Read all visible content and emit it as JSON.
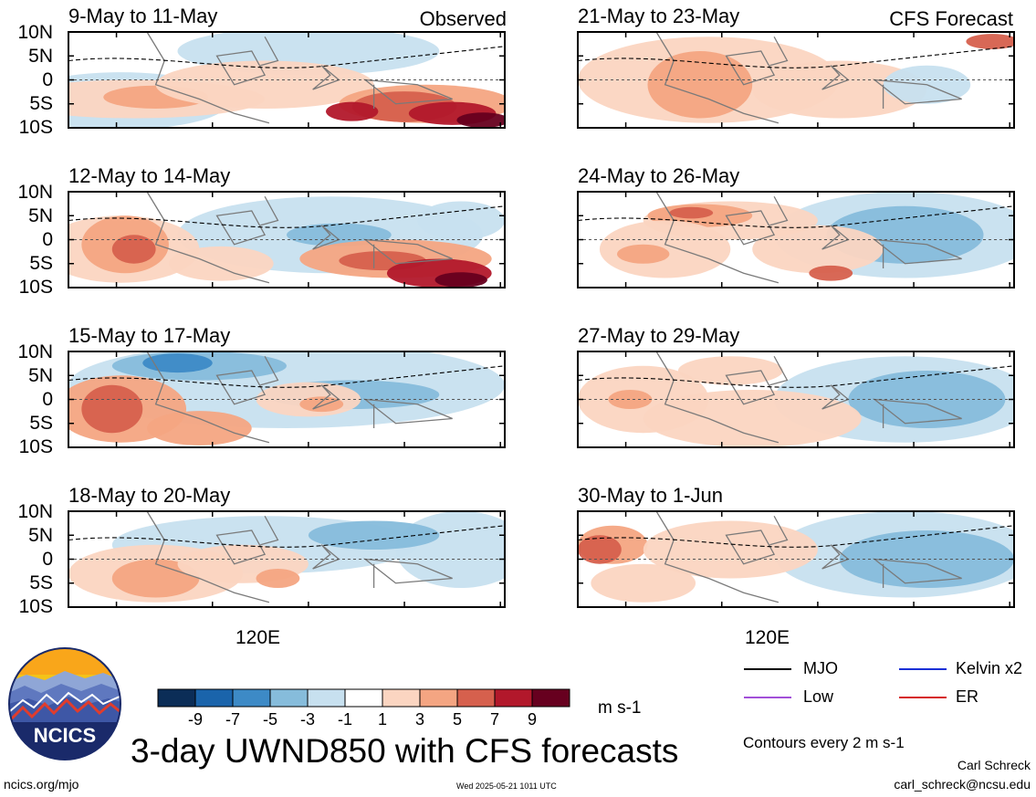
{
  "chart_data": {
    "type": "heatmap",
    "variable": "UWND850",
    "title": "3-day UWND850 with CFS forecasts",
    "units": "m s-1",
    "contour_note": "Contours every 2 m s-1",
    "y_tick_labels": [
      "10N",
      "5N",
      "0",
      "5S",
      "10S"
    ],
    "x_tick_labels": [
      "120E"
    ],
    "ylim": [
      -10,
      10
    ],
    "colorbar": {
      "tick_labels": [
        "-9",
        "-7",
        "-5",
        "-3",
        "-1",
        "1",
        "3",
        "5",
        "7",
        "9"
      ],
      "colors": [
        "#0b2d57",
        "#1a64ab",
        "#3d8ac6",
        "#86bcdb",
        "#c7e0ef",
        "#ffffff",
        "#fbd5c1",
        "#f4a582",
        "#d6604d",
        "#b2182b",
        "#67001f"
      ]
    },
    "columns": [
      {
        "corner_label": "Observed",
        "panels": [
          {
            "period": "9-May to 11-May"
          },
          {
            "period": "12-May to 14-May"
          },
          {
            "period": "15-May to 17-May"
          },
          {
            "period": "18-May to 20-May"
          }
        ]
      },
      {
        "corner_label": "CFS Forecast",
        "panels": [
          {
            "period": "21-May to 23-May"
          },
          {
            "period": "24-May to 26-May"
          },
          {
            "period": "27-May to 29-May"
          },
          {
            "period": "30-May to 1-Jun"
          }
        ]
      }
    ],
    "legend": [
      {
        "label": "MJO",
        "color": "#000000"
      },
      {
        "label": "Kelvin x2",
        "color": "#1a2fd6"
      },
      {
        "label": "Low",
        "color": "#a24fd8"
      },
      {
        "label": "ER",
        "color": "#d62020"
      }
    ]
  },
  "branding": {
    "logo_text": "NCICS",
    "site": "ncics.org/mjo",
    "timestamp": "Wed 2025-05-21 1011 UTC",
    "author": "Carl Schreck",
    "email": "carl_schreck@ncsu.edu"
  }
}
